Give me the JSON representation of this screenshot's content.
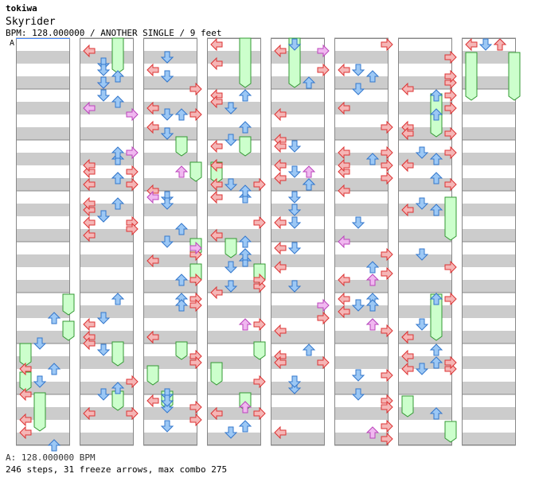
{
  "header": {
    "artist": "tokiwa",
    "title": "Skyrider",
    "info": "BPM: 128.000000 / ANOTHER SINGLE / 9 feet"
  },
  "chart_data": {
    "type": "table",
    "bpm_marker": "A",
    "measures_per_column": 8,
    "colors": {
      "left_right": "#f5b6b6",
      "left_right_stroke": "#dd3333",
      "up_down": "#9cc8f5",
      "up_down_stroke": "#3377cc",
      "special": "#f0b8f0",
      "special_stroke": "#bb44bb",
      "freeze": "#ccffcc",
      "freeze_stroke": "#339933",
      "stripe": "#cccccc",
      "lane_bg": "#ffffff",
      "border": "#888888"
    }
  },
  "footer": {
    "bpm_line": "A: 128.000000 BPM",
    "stats": "246 steps, 31 freeze arrows, max combo 275"
  }
}
